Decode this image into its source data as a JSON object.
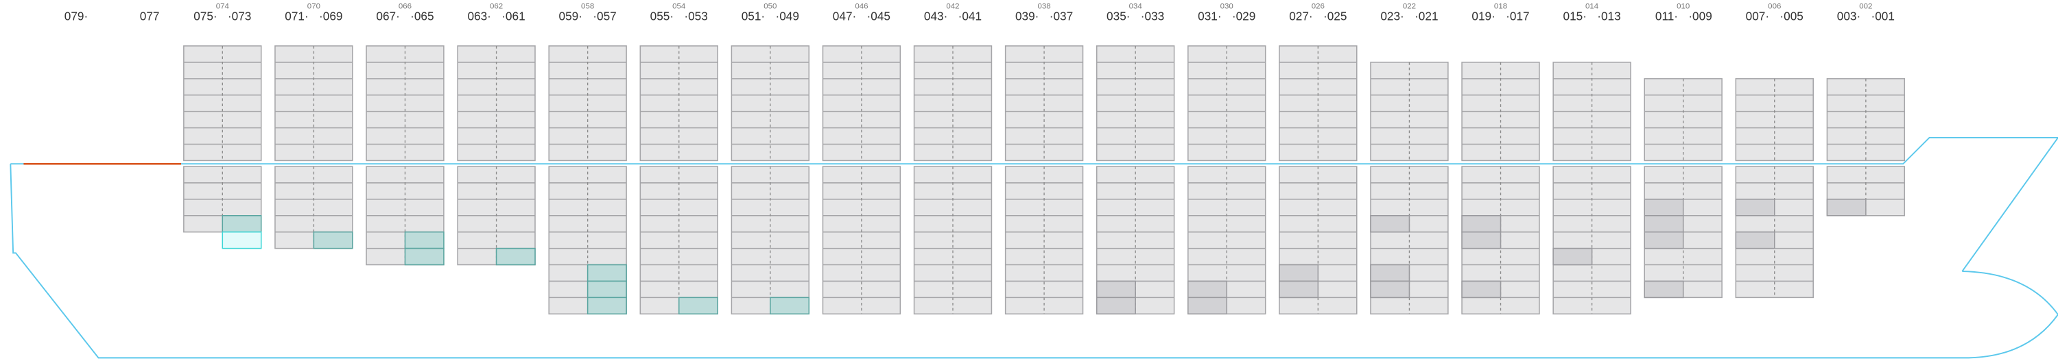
{
  "single_labels": [
    "079·",
    "077"
  ],
  "bays": [
    {
      "left": "075·",
      "mid": "074",
      "right": "·073"
    },
    {
      "left": "071·",
      "mid": "070",
      "right": "·069"
    },
    {
      "left": "067·",
      "mid": "066",
      "right": "·065"
    },
    {
      "left": "063·",
      "mid": "062",
      "right": "·061"
    },
    {
      "left": "059·",
      "mid": "058",
      "right": "·057"
    },
    {
      "left": "055·",
      "mid": "054",
      "right": "·053"
    },
    {
      "left": "051·",
      "mid": "050",
      "right": "·049"
    },
    {
      "left": "047·",
      "mid": "046",
      "right": "·045"
    },
    {
      "left": "043·",
      "mid": "042",
      "right": "·041"
    },
    {
      "left": "039·",
      "mid": "038",
      "right": "·037"
    },
    {
      "left": "035·",
      "mid": "034",
      "right": "·033"
    },
    {
      "left": "031·",
      "mid": "030",
      "right": "·029"
    },
    {
      "left": "027·",
      "mid": "026",
      "right": "·025"
    },
    {
      "left": "023·",
      "mid": "022",
      "right": "·021"
    },
    {
      "left": "019·",
      "mid": "018",
      "right": "·017"
    },
    {
      "left": "015·",
      "mid": "014",
      "right": "·013"
    },
    {
      "left": "011·",
      "mid": "010",
      "right": "·009"
    },
    {
      "left": "007·",
      "mid": "006",
      "right": "·005"
    },
    {
      "left": "003·",
      "mid": "002",
      "right": "·001"
    }
  ]
}
